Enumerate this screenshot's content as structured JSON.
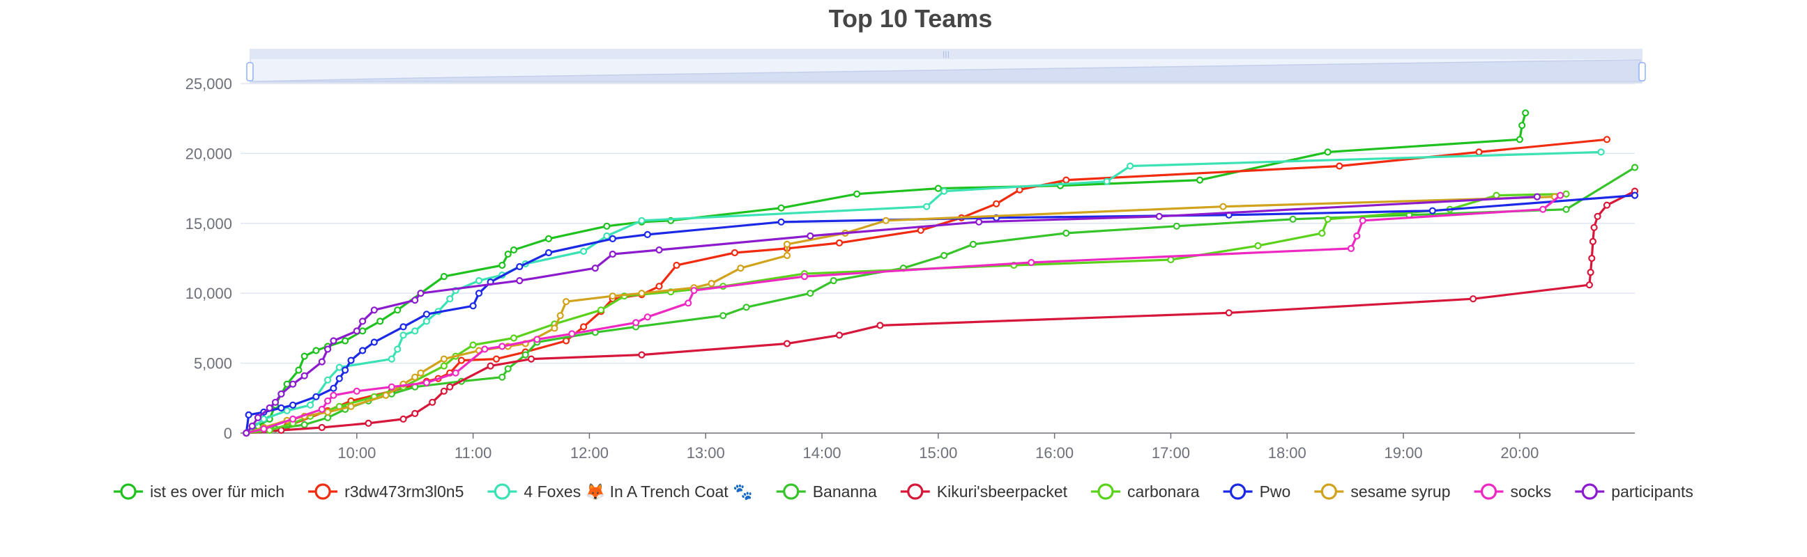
{
  "chart_data": {
    "type": "line",
    "title": "Top 10 Teams",
    "xlabel": "",
    "ylabel": "",
    "x_unit": "hour of day",
    "xlim": [
      9.0,
      20.99
    ],
    "ylim": [
      0,
      25000
    ],
    "x_ticks": [
      {
        "v": 10,
        "label": "10:00"
      },
      {
        "v": 11,
        "label": "11:00"
      },
      {
        "v": 12,
        "label": "12:00"
      },
      {
        "v": 13,
        "label": "13:00"
      },
      {
        "v": 14,
        "label": "14:00"
      },
      {
        "v": 15,
        "label": "15:00"
      },
      {
        "v": 16,
        "label": "16:00"
      },
      {
        "v": 17,
        "label": "17:00"
      },
      {
        "v": 18,
        "label": "18:00"
      },
      {
        "v": 19,
        "label": "19:00"
      },
      {
        "v": 20,
        "label": "20:00"
      }
    ],
    "y_ticks": [
      {
        "v": 0,
        "label": "0"
      },
      {
        "v": 5000,
        "label": "5,000"
      },
      {
        "v": 10000,
        "label": "10,000"
      },
      {
        "v": 15000,
        "label": "15,000"
      },
      {
        "v": 20000,
        "label": "20,000"
      },
      {
        "v": 25000,
        "label": "25,000"
      }
    ],
    "grid": "horizontal",
    "legend_position": "bottom",
    "data_zoom_slider": true,
    "series": [
      {
        "name": "ist es over für mich",
        "color": "#1fc11f",
        "points": [
          [
            9.05,
            0
          ],
          [
            9.15,
            500
          ],
          [
            9.25,
            1000
          ],
          [
            9.3,
            2000
          ],
          [
            9.35,
            2800
          ],
          [
            9.4,
            3500
          ],
          [
            9.5,
            4500
          ],
          [
            9.55,
            5500
          ],
          [
            9.65,
            5900
          ],
          [
            9.75,
            6200
          ],
          [
            9.9,
            6600
          ],
          [
            10.05,
            7300
          ],
          [
            10.2,
            8000
          ],
          [
            10.35,
            8800
          ],
          [
            10.55,
            10000
          ],
          [
            10.75,
            11200
          ],
          [
            11.25,
            12000
          ],
          [
            11.3,
            12800
          ],
          [
            11.35,
            13100
          ],
          [
            11.65,
            13900
          ],
          [
            12.15,
            14800
          ],
          [
            12.45,
            15100
          ],
          [
            12.7,
            15200
          ],
          [
            13.65,
            16100
          ],
          [
            14.3,
            17100
          ],
          [
            15.0,
            17500
          ],
          [
            16.05,
            17700
          ],
          [
            17.25,
            18100
          ],
          [
            18.35,
            20100
          ],
          [
            20.0,
            21000
          ],
          [
            20.02,
            22000
          ],
          [
            20.05,
            22900
          ]
        ]
      },
      {
        "name": "r3dw473rm3l0n5",
        "color": "#f02b0f",
        "points": [
          [
            9.05,
            0
          ],
          [
            9.4,
            500
          ],
          [
            9.75,
            1600
          ],
          [
            9.95,
            2300
          ],
          [
            10.3,
            3000
          ],
          [
            10.6,
            3700
          ],
          [
            10.7,
            3900
          ],
          [
            10.8,
            4300
          ],
          [
            10.9,
            5200
          ],
          [
            11.2,
            5300
          ],
          [
            11.45,
            5800
          ],
          [
            11.8,
            6600
          ],
          [
            11.95,
            7600
          ],
          [
            12.1,
            8700
          ],
          [
            12.2,
            9600
          ],
          [
            12.45,
            9900
          ],
          [
            12.6,
            10500
          ],
          [
            12.75,
            12000
          ],
          [
            13.25,
            12900
          ],
          [
            13.7,
            13200
          ],
          [
            14.15,
            13600
          ],
          [
            14.85,
            14500
          ],
          [
            15.2,
            15400
          ],
          [
            15.5,
            16400
          ],
          [
            15.7,
            17400
          ],
          [
            16.1,
            18100
          ],
          [
            18.45,
            19100
          ],
          [
            19.65,
            20100
          ],
          [
            20.75,
            21000
          ]
        ]
      },
      {
        "name": "4 Foxes 🦊 In A Trench Coat 🐾",
        "color": "#3ae2b4",
        "points": [
          [
            9.05,
            0
          ],
          [
            9.2,
            1000
          ],
          [
            9.4,
            1600
          ],
          [
            9.6,
            2000
          ],
          [
            9.75,
            3800
          ],
          [
            9.85,
            4700
          ],
          [
            10.3,
            5300
          ],
          [
            10.35,
            6000
          ],
          [
            10.4,
            7000
          ],
          [
            10.5,
            7300
          ],
          [
            10.6,
            8000
          ],
          [
            10.7,
            8700
          ],
          [
            10.8,
            9600
          ],
          [
            10.85,
            10200
          ],
          [
            11.05,
            10900
          ],
          [
            11.25,
            11300
          ],
          [
            11.45,
            12100
          ],
          [
            11.95,
            13000
          ],
          [
            12.15,
            14100
          ],
          [
            12.45,
            15200
          ],
          [
            14.9,
            16200
          ],
          [
            15.05,
            17300
          ],
          [
            16.45,
            18000
          ],
          [
            16.65,
            19100
          ],
          [
            20.7,
            20100
          ]
        ]
      },
      {
        "name": "Bananna",
        "color": "#37c42a",
        "points": [
          [
            9.05,
            0
          ],
          [
            9.3,
            300
          ],
          [
            9.55,
            600
          ],
          [
            9.75,
            1100
          ],
          [
            9.9,
            1700
          ],
          [
            10.1,
            2300
          ],
          [
            10.3,
            2800
          ],
          [
            10.5,
            3300
          ],
          [
            10.9,
            3700
          ],
          [
            11.25,
            4000
          ],
          [
            11.3,
            4600
          ],
          [
            11.45,
            5600
          ],
          [
            11.55,
            6500
          ],
          [
            12.05,
            7200
          ],
          [
            12.4,
            7600
          ],
          [
            13.15,
            8400
          ],
          [
            13.35,
            9000
          ],
          [
            13.9,
            10000
          ],
          [
            14.1,
            10900
          ],
          [
            14.7,
            11800
          ],
          [
            15.05,
            12700
          ],
          [
            15.3,
            13500
          ],
          [
            16.1,
            14300
          ],
          [
            17.05,
            14800
          ],
          [
            18.05,
            15300
          ],
          [
            19.05,
            15600
          ],
          [
            20.4,
            16000
          ],
          [
            20.99,
            19000
          ]
        ]
      },
      {
        "name": "Kikuri'sbeerpacket",
        "color": "#d6173a",
        "points": [
          [
            9.05,
            0
          ],
          [
            9.35,
            200
          ],
          [
            9.7,
            400
          ],
          [
            10.1,
            700
          ],
          [
            10.4,
            1000
          ],
          [
            10.5,
            1400
          ],
          [
            10.65,
            2200
          ],
          [
            10.75,
            3000
          ],
          [
            10.8,
            3300
          ],
          [
            11.15,
            4800
          ],
          [
            11.5,
            5300
          ],
          [
            12.45,
            5600
          ],
          [
            13.7,
            6400
          ],
          [
            14.15,
            7000
          ],
          [
            14.5,
            7700
          ],
          [
            17.5,
            8600
          ],
          [
            19.6,
            9600
          ],
          [
            20.6,
            10600
          ],
          [
            20.61,
            11500
          ],
          [
            20.62,
            12500
          ],
          [
            20.63,
            13700
          ],
          [
            20.64,
            14700
          ],
          [
            20.67,
            15500
          ],
          [
            20.75,
            16300
          ],
          [
            20.99,
            17300
          ]
        ]
      },
      {
        "name": "carbonara",
        "color": "#5ad21c",
        "points": [
          [
            9.05,
            0
          ],
          [
            9.25,
            200
          ],
          [
            9.45,
            700
          ],
          [
            9.6,
            1200
          ],
          [
            9.85,
            1900
          ],
          [
            10.15,
            2600
          ],
          [
            10.4,
            3300
          ],
          [
            10.75,
            4800
          ],
          [
            10.85,
            5500
          ],
          [
            11.0,
            6300
          ],
          [
            11.35,
            6800
          ],
          [
            11.7,
            7800
          ],
          [
            12.1,
            8800
          ],
          [
            12.3,
            9800
          ],
          [
            12.7,
            10100
          ],
          [
            13.15,
            10500
          ],
          [
            13.85,
            11400
          ],
          [
            15.65,
            12000
          ],
          [
            17.0,
            12400
          ],
          [
            17.75,
            13400
          ],
          [
            18.3,
            14300
          ],
          [
            18.35,
            15300
          ],
          [
            19.4,
            16000
          ],
          [
            19.8,
            17000
          ],
          [
            20.4,
            17100
          ]
        ]
      },
      {
        "name": "Pwo",
        "color": "#1b29e6",
        "points": [
          [
            9.05,
            0
          ],
          [
            9.07,
            1300
          ],
          [
            9.2,
            1500
          ],
          [
            9.35,
            1800
          ],
          [
            9.45,
            2000
          ],
          [
            9.65,
            2600
          ],
          [
            9.8,
            3200
          ],
          [
            9.85,
            3900
          ],
          [
            9.9,
            4500
          ],
          [
            9.95,
            5200
          ],
          [
            10.05,
            5900
          ],
          [
            10.15,
            6500
          ],
          [
            10.4,
            7600
          ],
          [
            10.6,
            8500
          ],
          [
            11.0,
            9100
          ],
          [
            11.05,
            10000
          ],
          [
            11.15,
            10800
          ],
          [
            11.4,
            11900
          ],
          [
            11.65,
            12900
          ],
          [
            12.2,
            13900
          ],
          [
            12.5,
            14200
          ],
          [
            13.65,
            15100
          ],
          [
            15.5,
            15400
          ],
          [
            17.5,
            15600
          ],
          [
            19.25,
            15900
          ],
          [
            20.99,
            17000
          ]
        ]
      },
      {
        "name": "sesame syrup",
        "color": "#d1a21c",
        "points": [
          [
            9.05,
            0
          ],
          [
            9.2,
            400
          ],
          [
            9.4,
            900
          ],
          [
            9.55,
            1200
          ],
          [
            9.75,
            1500
          ],
          [
            9.95,
            1900
          ],
          [
            10.25,
            2700
          ],
          [
            10.4,
            3500
          ],
          [
            10.5,
            4000
          ],
          [
            10.55,
            4300
          ],
          [
            10.75,
            5300
          ],
          [
            11.05,
            5900
          ],
          [
            11.3,
            6200
          ],
          [
            11.45,
            6400
          ],
          [
            11.7,
            7500
          ],
          [
            11.75,
            8400
          ],
          [
            11.8,
            9400
          ],
          [
            12.2,
            9800
          ],
          [
            12.45,
            10000
          ],
          [
            12.9,
            10400
          ],
          [
            13.05,
            10700
          ],
          [
            13.3,
            11800
          ],
          [
            13.7,
            12700
          ],
          [
            13.7,
            13500
          ],
          [
            14.2,
            14300
          ],
          [
            14.55,
            15200
          ],
          [
            17.45,
            16200
          ],
          [
            20.3,
            16900
          ]
        ]
      },
      {
        "name": "socks",
        "color": "#ee29c2",
        "points": [
          [
            9.05,
            0
          ],
          [
            9.2,
            300
          ],
          [
            9.45,
            1000
          ],
          [
            9.7,
            1700
          ],
          [
            9.75,
            2300
          ],
          [
            9.8,
            2700
          ],
          [
            10.0,
            3000
          ],
          [
            10.3,
            3300
          ],
          [
            10.6,
            3600
          ],
          [
            10.85,
            4300
          ],
          [
            11.1,
            6000
          ],
          [
            11.25,
            6200
          ],
          [
            11.55,
            6700
          ],
          [
            11.85,
            7100
          ],
          [
            12.4,
            7900
          ],
          [
            12.5,
            8300
          ],
          [
            12.85,
            9300
          ],
          [
            12.9,
            10200
          ],
          [
            13.85,
            11200
          ],
          [
            15.8,
            12200
          ],
          [
            18.55,
            13200
          ],
          [
            18.6,
            14100
          ],
          [
            18.65,
            15200
          ],
          [
            20.2,
            16000
          ],
          [
            20.35,
            17000
          ]
        ]
      },
      {
        "name": "participants",
        "color": "#8c1bcd",
        "points": [
          [
            9.05,
            0
          ],
          [
            9.1,
            500
          ],
          [
            9.15,
            1100
          ],
          [
            9.25,
            1800
          ],
          [
            9.3,
            2200
          ],
          [
            9.35,
            2800
          ],
          [
            9.45,
            3500
          ],
          [
            9.55,
            4100
          ],
          [
            9.7,
            5100
          ],
          [
            9.75,
            6000
          ],
          [
            9.8,
            6600
          ],
          [
            10.0,
            7300
          ],
          [
            10.05,
            8000
          ],
          [
            10.15,
            8800
          ],
          [
            10.5,
            9500
          ],
          [
            10.55,
            10000
          ],
          [
            11.4,
            10900
          ],
          [
            12.05,
            11800
          ],
          [
            12.2,
            12800
          ],
          [
            12.6,
            13100
          ],
          [
            13.9,
            14100
          ],
          [
            15.35,
            15100
          ],
          [
            16.9,
            15500
          ],
          [
            20.15,
            16900
          ]
        ]
      }
    ]
  }
}
